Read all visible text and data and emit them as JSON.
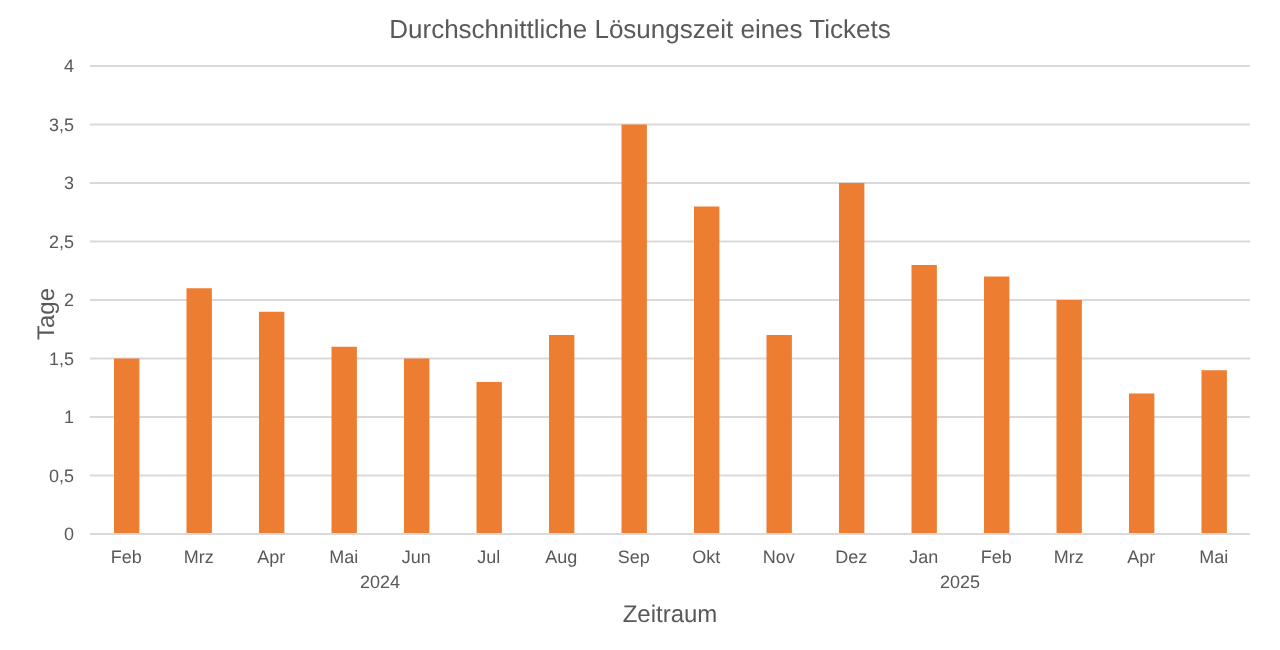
{
  "chart_data": {
    "type": "bar",
    "title": "Durchschnittliche Lösungszeit eines Tickets",
    "xlabel": "Zeitraum",
    "ylabel": "Tage",
    "categories": [
      "Feb",
      "Mrz",
      "Apr",
      "Mai",
      "Jun",
      "Jul",
      "Aug",
      "Sep",
      "Okt",
      "Nov",
      "Dez",
      "Jan",
      "Feb",
      "Mrz",
      "Apr",
      "Mai"
    ],
    "values": [
      1.5,
      2.1,
      1.9,
      1.6,
      1.5,
      1.3,
      1.7,
      3.5,
      2.8,
      1.7,
      3.0,
      2.3,
      2.2,
      2.0,
      1.2,
      1.4
    ],
    "color": "#ed7d31",
    "ylim": [
      0,
      4
    ],
    "yticks": [
      0,
      {
        "value": 0.5,
        "label": "0,5"
      },
      1,
      {
        "value": 1.5,
        "label": "1,5"
      },
      2,
      {
        "value": 2.5,
        "label": "2,5"
      },
      3,
      {
        "value": 3.5,
        "label": "3,5"
      },
      4
    ],
    "grid": "y",
    "annotations": [
      "2024",
      "2025"
    ]
  }
}
